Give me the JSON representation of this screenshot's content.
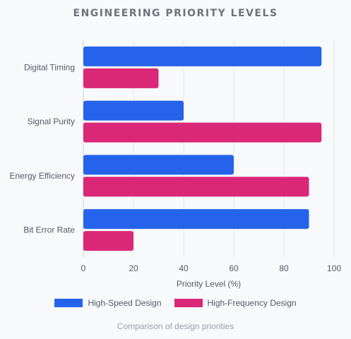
{
  "chart_data": {
    "type": "bar",
    "orientation": "horizontal",
    "title": "ENGINEERING PRIORITY LEVELS",
    "caption": "Comparison of design priorities",
    "categories": [
      "Digital Timing",
      "Signal Purity",
      "Energy Efficiency",
      "Bit Error Rate"
    ],
    "series": [
      {
        "name": "High-Speed Design",
        "color": "#2563eb",
        "values": [
          95,
          40,
          60,
          90
        ]
      },
      {
        "name": "High-Frequency Design",
        "color": "#db2777",
        "values": [
          30,
          95,
          90,
          20
        ]
      }
    ],
    "xlabel": "Priority Level (%)",
    "ylabel": "",
    "xlim": [
      0,
      100
    ],
    "xticks": [
      "0",
      "20",
      "40",
      "60",
      "80",
      "100"
    ],
    "grid": "vertical",
    "legend_position": "bottom"
  }
}
